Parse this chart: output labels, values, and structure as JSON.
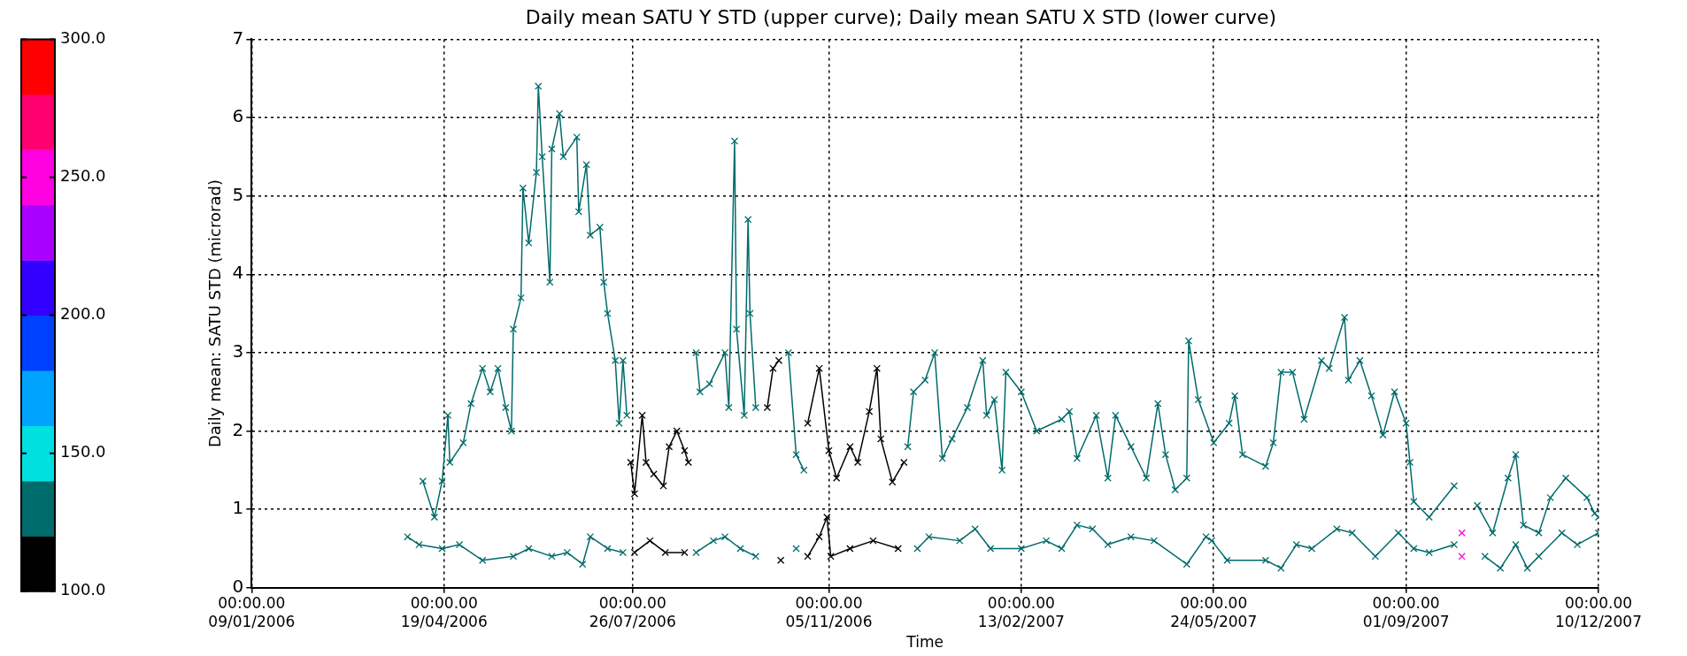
{
  "chart_data": {
    "type": "line",
    "title": "Daily mean SATU Y STD (upper curve); Daily mean SATU X STD (lower curve)",
    "xlabel": "Time",
    "ylabel": "Daily mean: SATU STD (microrad)",
    "marker": "cross",
    "grid": true,
    "xlim": [
      "2006-01-09",
      "2007-12-10"
    ],
    "xticks": [
      {
        "value": "2006-01-09",
        "label": "00:00.00\n09/01/2006"
      },
      {
        "value": "2006-04-19",
        "label": "00:00.00\n19/04/2006"
      },
      {
        "value": "2006-07-26",
        "label": "00:00.00\n26/07/2006"
      },
      {
        "value": "2006-11-05",
        "label": "00:00.00\n05/11/2006"
      },
      {
        "value": "2007-02-13",
        "label": "00:00.00\n13/02/2007"
      },
      {
        "value": "2007-05-24",
        "label": "00:00.00\n24/05/2007"
      },
      {
        "value": "2007-09-01",
        "label": "00:00.00\n01/09/2007"
      },
      {
        "value": "2007-12-10",
        "label": "00:00.00\n10/12/2007"
      }
    ],
    "ylim": [
      0,
      7
    ],
    "yticks": [
      0,
      1,
      2,
      3,
      4,
      5,
      6,
      7
    ],
    "clim": [
      100,
      300
    ],
    "cticks": [
      {
        "value": 100,
        "label": "100.0"
      },
      {
        "value": 150,
        "label": "150.0"
      },
      {
        "value": 200,
        "label": "200.0"
      },
      {
        "value": 250,
        "label": "250.0"
      },
      {
        "value": 300,
        "label": "300.0"
      }
    ],
    "series": [
      {
        "color": "#006b6b",
        "x": [
          "2006-04-08",
          "2006-04-14",
          "2006-04-18",
          "2006-04-21",
          "2006-04-22",
          "2006-04-29",
          "2006-05-03",
          "2006-05-09",
          "2006-05-13",
          "2006-05-17",
          "2006-05-21",
          "2006-05-24",
          "2006-05-25",
          "2006-05-29",
          "2006-05-30",
          "2006-06-02",
          "2006-06-06",
          "2006-06-07",
          "2006-06-09",
          "2006-06-13",
          "2006-06-14",
          "2006-06-18",
          "2006-06-20",
          "2006-06-27",
          "2006-06-28",
          "2006-07-02",
          "2006-07-04",
          "2006-07-09",
          "2006-07-11",
          "2006-07-13",
          "2006-07-17",
          "2006-07-19",
          "2006-07-21",
          "2006-07-23"
        ],
        "values": [
          1.36,
          0.9,
          1.36,
          2.2,
          1.6,
          1.85,
          2.35,
          2.8,
          2.5,
          2.8,
          2.3,
          2.0,
          3.3,
          3.7,
          5.1,
          4.4,
          5.3,
          6.4,
          5.5,
          3.9,
          5.6,
          6.05,
          5.5,
          5.75,
          4.8,
          5.4,
          4.5,
          4.6,
          3.9,
          3.5,
          2.9,
          2.1,
          2.9,
          2.2
        ]
      },
      {
        "color": "#000000",
        "x": [
          "2006-07-25",
          "2006-07-27",
          "2006-07-31",
          "2006-08-02",
          "2006-08-06",
          "2006-08-11",
          "2006-08-14",
          "2006-08-18",
          "2006-08-22",
          "2006-08-24"
        ],
        "values": [
          1.6,
          1.2,
          2.2,
          1.6,
          1.45,
          1.3,
          1.8,
          2.0,
          1.75,
          1.6
        ]
      },
      {
        "color": "#006b6b",
        "x": [
          "2006-08-28",
          "2006-08-30",
          "2006-09-04",
          "2006-09-12",
          "2006-09-14",
          "2006-09-17",
          "2006-09-18",
          "2006-09-22",
          "2006-09-24",
          "2006-09-25",
          "2006-09-28"
        ],
        "values": [
          3.0,
          2.5,
          2.6,
          3.0,
          2.3,
          5.7,
          3.3,
          2.2,
          4.7,
          3.5,
          2.3
        ]
      },
      {
        "color": "#000000",
        "x": [
          "2006-10-04",
          "2006-10-07",
          "2006-10-10"
        ],
        "values": [
          2.3,
          2.8,
          2.9
        ]
      },
      {
        "color": "#006b6b",
        "x": [
          "2006-10-15",
          "2006-10-19",
          "2006-10-23"
        ],
        "values": [
          3.0,
          1.7,
          1.5
        ]
      },
      {
        "color": "#000000",
        "x": [
          "2006-10-25",
          "2006-10-31",
          "2006-11-05",
          "2006-11-09",
          "2006-11-16",
          "2006-11-20",
          "2006-11-26",
          "2006-11-30",
          "2006-12-02",
          "2006-12-08",
          "2006-12-14"
        ],
        "values": [
          2.1,
          2.8,
          1.75,
          1.4,
          1.8,
          1.6,
          2.25,
          2.8,
          1.9,
          1.35,
          1.6
        ]
      },
      {
        "color": "#006b6b",
        "x": [
          "2006-12-16",
          "2006-12-19",
          "2006-12-25",
          "2006-12-30",
          "2007-01-03",
          "2007-01-08",
          "2007-01-16",
          "2007-01-24",
          "2007-01-26",
          "2007-01-30",
          "2007-02-03",
          "2007-02-05",
          "2007-02-13",
          "2007-02-21",
          "2007-03-06",
          "2007-03-10",
          "2007-03-14",
          "2007-03-24",
          "2007-03-30",
          "2007-04-03",
          "2007-04-11",
          "2007-04-19",
          "2007-04-25",
          "2007-04-29",
          "2007-05-04",
          "2007-05-10",
          "2007-05-11",
          "2007-05-16",
          "2007-05-24",
          "2007-06-01",
          "2007-06-04",
          "2007-06-08",
          "2007-06-20",
          "2007-06-24",
          "2007-06-28",
          "2007-07-04",
          "2007-07-10",
          "2007-07-19",
          "2007-07-23",
          "2007-07-31",
          "2007-08-02",
          "2007-08-08",
          "2007-08-14",
          "2007-08-20",
          "2007-08-26",
          "2007-09-01",
          "2007-09-03",
          "2007-09-05",
          "2007-09-13",
          "2007-09-26"
        ],
        "values": [
          1.8,
          2.5,
          2.65,
          3.0,
          1.65,
          1.9,
          2.3,
          2.9,
          2.2,
          2.4,
          1.5,
          2.75,
          2.5,
          2.0,
          2.15,
          2.25,
          1.65,
          2.2,
          1.4,
          2.2,
          1.8,
          1.4,
          2.35,
          1.7,
          1.25,
          1.4,
          3.15,
          2.4,
          1.85,
          2.1,
          2.45,
          1.7,
          1.55,
          1.85,
          2.75,
          2.75,
          2.15,
          2.9,
          2.8,
          3.45,
          2.65,
          2.9,
          2.45,
          1.95,
          2.5,
          2.1,
          1.6,
          1.1,
          0.9,
          1.3
        ]
      },
      {
        "color": "#ff00e0",
        "x": [
          "2007-09-30"
        ],
        "values": [
          0.7
        ]
      },
      {
        "color": "#006b6b",
        "x": [
          "2007-10-08",
          "2007-10-16",
          "2007-10-24",
          "2007-10-28",
          "2007-11-01",
          "2007-11-09",
          "2007-11-15",
          "2007-11-23",
          "2007-12-04",
          "2007-12-08",
          "2007-12-10"
        ],
        "values": [
          1.05,
          0.7,
          1.4,
          1.7,
          0.8,
          0.7,
          1.15,
          1.4,
          1.15,
          0.95,
          0.9
        ]
      },
      {
        "color": "#006b6b",
        "x": [
          "2006-03-31",
          "2006-04-06",
          "2006-04-18",
          "2006-04-27",
          "2006-05-09",
          "2006-05-25",
          "2006-06-02",
          "2006-06-14",
          "2006-06-22",
          "2006-06-30",
          "2006-07-04",
          "2006-07-13",
          "2006-07-21"
        ],
        "values": [
          0.65,
          0.55,
          0.5,
          0.55,
          0.35,
          0.4,
          0.5,
          0.4,
          0.45,
          0.3,
          0.65,
          0.5,
          0.45
        ]
      },
      {
        "color": "#000000",
        "x": [
          "2006-07-27",
          "2006-08-04",
          "2006-08-12",
          "2006-08-22"
        ],
        "values": [
          0.45,
          0.6,
          0.45,
          0.45
        ]
      },
      {
        "color": "#006b6b",
        "x": [
          "2006-08-28",
          "2006-09-06",
          "2006-09-12",
          "2006-09-20",
          "2006-09-28"
        ],
        "values": [
          0.45,
          0.6,
          0.65,
          0.5,
          0.4
        ]
      },
      {
        "color": "#000000",
        "x": [
          "2006-10-11"
        ],
        "values": [
          0.35
        ]
      },
      {
        "color": "#006b6b",
        "x": [
          "2006-10-19"
        ],
        "values": [
          0.5
        ]
      },
      {
        "color": "#000000",
        "x": [
          "2006-10-25",
          "2006-10-31",
          "2006-11-04",
          "2006-11-06",
          "2006-11-16",
          "2006-11-28",
          "2006-12-11"
        ],
        "values": [
          0.4,
          0.65,
          0.9,
          0.4,
          0.5,
          0.6,
          0.5
        ]
      },
      {
        "color": "#006b6b",
        "x": [
          "2006-12-21",
          "2006-12-27",
          "2007-01-12",
          "2007-01-20",
          "2007-01-28",
          "2007-02-13",
          "2007-02-26",
          "2007-03-06",
          "2007-03-14",
          "2007-03-22",
          "2007-03-30",
          "2007-04-11",
          "2007-04-23",
          "2007-05-10",
          "2007-05-20",
          "2007-05-23",
          "2007-05-31",
          "2007-06-20",
          "2007-06-28",
          "2007-07-06",
          "2007-07-14",
          "2007-07-27",
          "2007-08-04",
          "2007-08-16",
          "2007-08-28",
          "2007-09-05",
          "2007-09-13",
          "2007-09-26"
        ],
        "values": [
          0.5,
          0.65,
          0.6,
          0.75,
          0.5,
          0.5,
          0.6,
          0.5,
          0.8,
          0.75,
          0.55,
          0.65,
          0.6,
          0.3,
          0.65,
          0.6,
          0.35,
          0.35,
          0.25,
          0.55,
          0.5,
          0.75,
          0.7,
          0.4,
          0.7,
          0.5,
          0.45,
          0.55
        ]
      },
      {
        "color": "#ff00e0",
        "x": [
          "2007-09-30"
        ],
        "values": [
          0.4
        ]
      },
      {
        "color": "#006b6b",
        "x": [
          "2007-10-12",
          "2007-10-20",
          "2007-10-28",
          "2007-11-03",
          "2007-11-09",
          "2007-11-21",
          "2007-11-29",
          "2007-12-10"
        ],
        "values": [
          0.4,
          0.25,
          0.55,
          0.25,
          0.4,
          0.7,
          0.55,
          0.7
        ]
      }
    ]
  }
}
